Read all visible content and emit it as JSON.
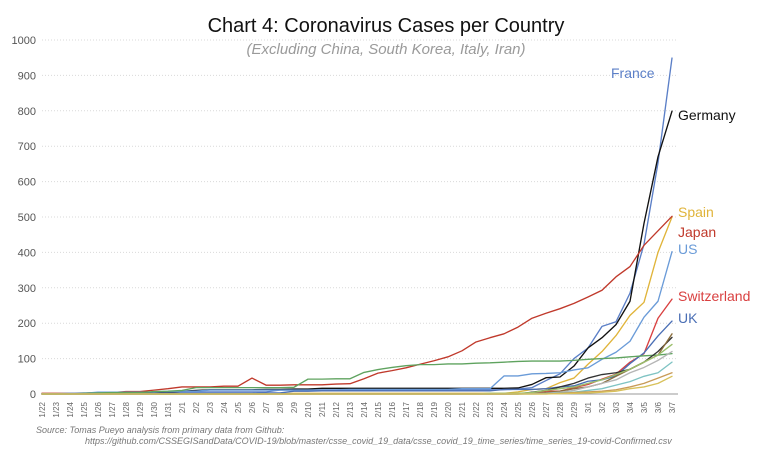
{
  "chart_data": {
    "type": "line",
    "title": "Chart 4: Coronavirus Cases per Country",
    "subtitle": "(Excluding China, South Korea, Italy, Iran)",
    "xlabel": "",
    "ylabel": "",
    "x": [
      "1/22",
      "1/23",
      "1/24",
      "1/25",
      "1/26",
      "1/27",
      "1/28",
      "1/29",
      "1/30",
      "1/31",
      "2/1",
      "2/2",
      "2/3",
      "2/4",
      "2/5",
      "2/6",
      "2/7",
      "2/8",
      "2/9",
      "2/10",
      "2/11",
      "2/12",
      "2/13",
      "2/14",
      "2/15",
      "2/16",
      "2/17",
      "2/18",
      "2/19",
      "2/20",
      "2/21",
      "2/22",
      "2/23",
      "2/24",
      "2/25",
      "2/26",
      "2/27",
      "2/28",
      "2/29",
      "3/1",
      "3/2",
      "3/3",
      "3/4",
      "3/5",
      "3/6",
      "3/7"
    ],
    "yticks": [
      "0",
      "100",
      "200",
      "300",
      "400",
      "500",
      "600",
      "700",
      "800",
      "900",
      "1000"
    ],
    "ylim": [
      0,
      1000
    ],
    "grid": true,
    "series": [
      {
        "name": "France",
        "color": "#5b7fc7",
        "values": [
          0,
          0,
          2,
          3,
          3,
          3,
          4,
          5,
          5,
          5,
          6,
          6,
          6,
          6,
          6,
          6,
          6,
          11,
          11,
          11,
          11,
          11,
          11,
          11,
          12,
          12,
          12,
          12,
          12,
          12,
          12,
          12,
          12,
          12,
          14,
          18,
          38,
          57,
          100,
          130,
          191,
          204,
          285,
          423,
          653,
          949
        ]
      },
      {
        "name": "Germany",
        "color": "#111111",
        "values": [
          0,
          0,
          0,
          0,
          0,
          1,
          4,
          4,
          4,
          5,
          8,
          10,
          12,
          12,
          12,
          12,
          13,
          13,
          14,
          14,
          16,
          16,
          16,
          16,
          16,
          16,
          16,
          16,
          16,
          16,
          16,
          16,
          16,
          16,
          17,
          27,
          46,
          48,
          79,
          130,
          159,
          196,
          262,
          482,
          670,
          799
        ]
      },
      {
        "name": "Spain",
        "color": "#e0b43a",
        "values": [
          0,
          0,
          0,
          0,
          0,
          0,
          0,
          0,
          0,
          0,
          1,
          1,
          1,
          1,
          1,
          1,
          1,
          1,
          2,
          2,
          2,
          2,
          2,
          2,
          2,
          2,
          2,
          2,
          2,
          2,
          2,
          2,
          2,
          2,
          6,
          13,
          15,
          32,
          45,
          84,
          120,
          165,
          222,
          259,
          400,
          500
        ]
      },
      {
        "name": "Japan",
        "color": "#c0392b",
        "values": [
          2,
          2,
          2,
          2,
          4,
          4,
          7,
          7,
          11,
          15,
          20,
          20,
          20,
          22,
          22,
          45,
          25,
          25,
          26,
          26,
          26,
          28,
          29,
          43,
          59,
          66,
          74,
          84,
          94,
          105,
          122,
          147,
          159,
          170,
          189,
          214,
          228,
          241,
          256,
          274,
          293,
          331,
          360,
          420,
          461,
          502
        ]
      },
      {
        "name": "US",
        "color": "#6a9bd8",
        "values": [
          1,
          1,
          2,
          2,
          5,
          5,
          5,
          5,
          5,
          7,
          8,
          8,
          11,
          11,
          11,
          11,
          11,
          11,
          11,
          11,
          12,
          12,
          13,
          13,
          13,
          13,
          13,
          13,
          13,
          13,
          15,
          15,
          15,
          51,
          51,
          57,
          58,
          60,
          68,
          74,
          98,
          118,
          149,
          217,
          262,
          402
        ]
      },
      {
        "name": "Switzerland",
        "color": "#d94040",
        "values": [
          0,
          0,
          0,
          0,
          0,
          0,
          0,
          0,
          0,
          0,
          0,
          0,
          0,
          0,
          0,
          0,
          0,
          0,
          0,
          0,
          0,
          0,
          0,
          0,
          0,
          0,
          0,
          0,
          0,
          0,
          0,
          0,
          0,
          0,
          1,
          1,
          8,
          8,
          18,
          27,
          42,
          56,
          90,
          114,
          214,
          268
        ]
      },
      {
        "name": "UK",
        "color": "#4b6fb5",
        "values": [
          0,
          0,
          0,
          0,
          0,
          0,
          0,
          0,
          0,
          2,
          2,
          2,
          2,
          2,
          2,
          2,
          3,
          3,
          8,
          8,
          9,
          9,
          9,
          9,
          9,
          9,
          9,
          9,
          9,
          9,
          9,
          9,
          9,
          13,
          13,
          13,
          15,
          20,
          23,
          36,
          40,
          51,
          86,
          116,
          164,
          206
        ]
      },
      {
        "name": "",
        "color": "#5fa35f",
        "values": [
          0,
          0,
          0,
          2,
          3,
          4,
          4,
          4,
          7,
          8,
          10,
          18,
          18,
          18,
          18,
          18,
          18,
          18,
          19,
          42,
          42,
          43,
          43,
          61,
          69,
          75,
          80,
          83,
          83,
          85,
          85,
          87,
          88,
          90,
          92,
          93,
          93,
          93,
          95,
          98,
          100,
          102,
          105,
          108,
          110,
          114
        ]
      },
      {
        "name": "",
        "color": "#333333",
        "values": [
          0,
          0,
          0,
          0,
          0,
          0,
          0,
          0,
          0,
          0,
          0,
          0,
          0,
          0,
          0,
          0,
          0,
          0,
          0,
          0,
          0,
          0,
          0,
          0,
          0,
          0,
          0,
          0,
          0,
          0,
          0,
          0,
          0,
          0,
          0,
          5,
          10,
          20,
          30,
          45,
          55,
          60,
          70,
          90,
          120,
          160
        ]
      },
      {
        "name": "",
        "color": "#8a6d3b",
        "values": [
          0,
          0,
          0,
          0,
          0,
          0,
          0,
          0,
          0,
          0,
          0,
          0,
          0,
          0,
          0,
          0,
          0,
          0,
          0,
          0,
          0,
          0,
          0,
          0,
          0,
          0,
          0,
          0,
          0,
          0,
          0,
          0,
          0,
          0,
          0,
          1,
          4,
          8,
          15,
          20,
          30,
          50,
          70,
          90,
          110,
          170
        ]
      },
      {
        "name": "",
        "color": "#9bbf6b",
        "values": [
          0,
          0,
          0,
          0,
          0,
          0,
          0,
          0,
          0,
          0,
          0,
          0,
          0,
          0,
          0,
          0,
          0,
          0,
          0,
          0,
          0,
          0,
          0,
          0,
          0,
          0,
          0,
          0,
          0,
          0,
          0,
          0,
          2,
          2,
          2,
          4,
          10,
          15,
          20,
          30,
          40,
          55,
          70,
          90,
          110,
          140
        ]
      },
      {
        "name": "",
        "color": "#b5b5b5",
        "values": [
          0,
          0,
          0,
          0,
          0,
          0,
          0,
          0,
          0,
          0,
          0,
          0,
          0,
          0,
          0,
          0,
          0,
          0,
          0,
          0,
          0,
          0,
          0,
          0,
          0,
          0,
          0,
          0,
          0,
          0,
          0,
          0,
          0,
          0,
          0,
          1,
          2,
          5,
          10,
          20,
          30,
          40,
          60,
          75,
          95,
          120
        ]
      },
      {
        "name": "",
        "color": "#7ec3c3",
        "values": [
          0,
          0,
          0,
          0,
          0,
          0,
          0,
          0,
          0,
          0,
          0,
          0,
          0,
          0,
          0,
          0,
          0,
          0,
          0,
          0,
          0,
          0,
          0,
          0,
          0,
          0,
          0,
          0,
          0,
          0,
          0,
          0,
          0,
          0,
          0,
          0,
          1,
          3,
          5,
          10,
          15,
          25,
          35,
          50,
          60,
          90
        ]
      },
      {
        "name": "",
        "color": "#c89b57",
        "values": [
          0,
          0,
          0,
          0,
          0,
          0,
          0,
          0,
          0,
          0,
          0,
          0,
          0,
          0,
          0,
          0,
          0,
          0,
          0,
          0,
          0,
          0,
          0,
          0,
          0,
          0,
          0,
          0,
          0,
          0,
          0,
          0,
          0,
          0,
          0,
          0,
          0,
          2,
          4,
          6,
          8,
          12,
          20,
          30,
          45,
          60
        ]
      },
      {
        "name": "",
        "color": "#d8c15a",
        "values": [
          0,
          0,
          0,
          0,
          0,
          0,
          0,
          0,
          0,
          0,
          0,
          0,
          0,
          0,
          0,
          0,
          0,
          0,
          0,
          0,
          0,
          0,
          0,
          0,
          0,
          0,
          0,
          0,
          0,
          0,
          0,
          0,
          0,
          0,
          0,
          0,
          0,
          1,
          2,
          3,
          5,
          8,
          15,
          20,
          30,
          50
        ]
      }
    ]
  },
  "source": {
    "line1": "Source: Tomas Pueyo analysis from primary data from Github:",
    "line2": "https://github.com/CSSEGISandData/COVID-19/blob/master/csse_covid_19_data/csse_covid_19_time_series/time_series_19-covid-Confirmed.csv"
  }
}
